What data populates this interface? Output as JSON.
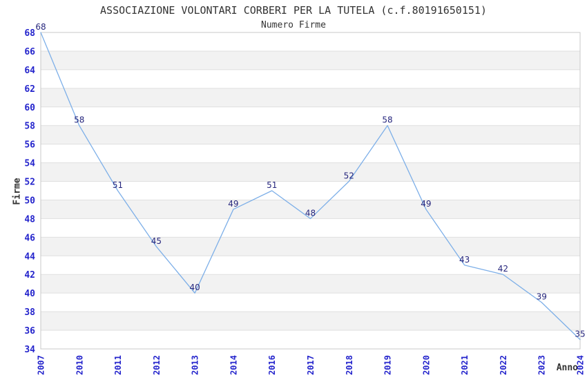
{
  "chart_data": {
    "type": "line",
    "title": "ASSOCIAZIONE VOLONTARI CORBERI PER LA TUTELA (c.f.80191650151)",
    "subtitle": "Numero Firme",
    "xlabel": "Anno",
    "ylabel": "Firme",
    "x": [
      "2007",
      "2010",
      "2011",
      "2012",
      "2013",
      "2014",
      "2016",
      "2017",
      "2018",
      "2019",
      "2020",
      "2021",
      "2022",
      "2023",
      "2024"
    ],
    "values": [
      68,
      58,
      51,
      45,
      40,
      49,
      51,
      48,
      52,
      58,
      49,
      43,
      42,
      39,
      35
    ],
    "series_name": "Numero Firme",
    "ylim": [
      34,
      68
    ],
    "ytick_step": 2,
    "yticks": [
      34,
      36,
      38,
      40,
      42,
      44,
      46,
      48,
      50,
      52,
      54,
      56,
      58,
      60,
      62,
      64,
      66,
      68
    ],
    "grid": "horizontal alternating bands every 2 units",
    "legend": false,
    "point_labels": true,
    "colors": {
      "line": "#7dafe8",
      "tick_label": "#2424cc",
      "data_label": "#26267d",
      "band_fill": "#f2f2f2",
      "grid_line": "#dfdfdf",
      "plot_border": "#c8c8c8",
      "text": "#333333"
    }
  }
}
